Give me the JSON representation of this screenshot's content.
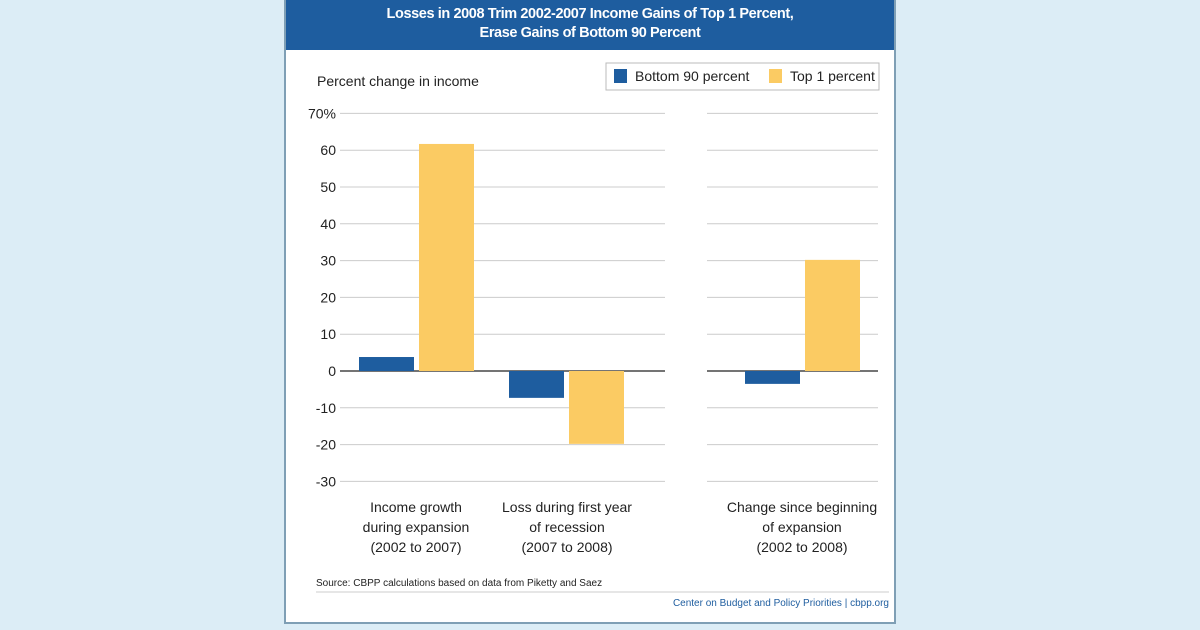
{
  "chart_data": {
    "type": "bar",
    "title": [
      "Losses in 2008 Trim 2002-2007 Income Gains of Top 1 Percent,",
      "Erase Gains of Bottom 90 Percent"
    ],
    "ylabel": "Percent change in income",
    "ylim": [
      -30,
      70
    ],
    "yticks": [
      70,
      60,
      50,
      40,
      30,
      20,
      10,
      0,
      -10,
      -20,
      -30
    ],
    "ytick_labels": [
      "70%",
      "60",
      "50",
      "40",
      "30",
      "20",
      "10",
      "0",
      "-10",
      "-20",
      "-30"
    ],
    "categories": [
      [
        "Income growth",
        "during expansion",
        "(2002 to 2007)"
      ],
      [
        "Loss during first year",
        "of recession",
        "(2007 to 2008)"
      ],
      [
        "Change since beginning",
        "of expansion",
        "(2002 to 2008)"
      ]
    ],
    "series": [
      {
        "name": "Bottom 90 percent",
        "color": "#1e5d9f",
        "values": [
          3.8,
          -7.3,
          -3.5
        ]
      },
      {
        "name": "Top 1 percent",
        "color": "#fbcb63",
        "values": [
          61.7,
          -19.8,
          30.2
        ]
      }
    ],
    "legend_position": "top-right",
    "grid": true,
    "source": "Source: CBPP calculations based on data from Piketty and Saez",
    "credit": "Center on Budget and Policy Priorities | cbpp.org"
  }
}
